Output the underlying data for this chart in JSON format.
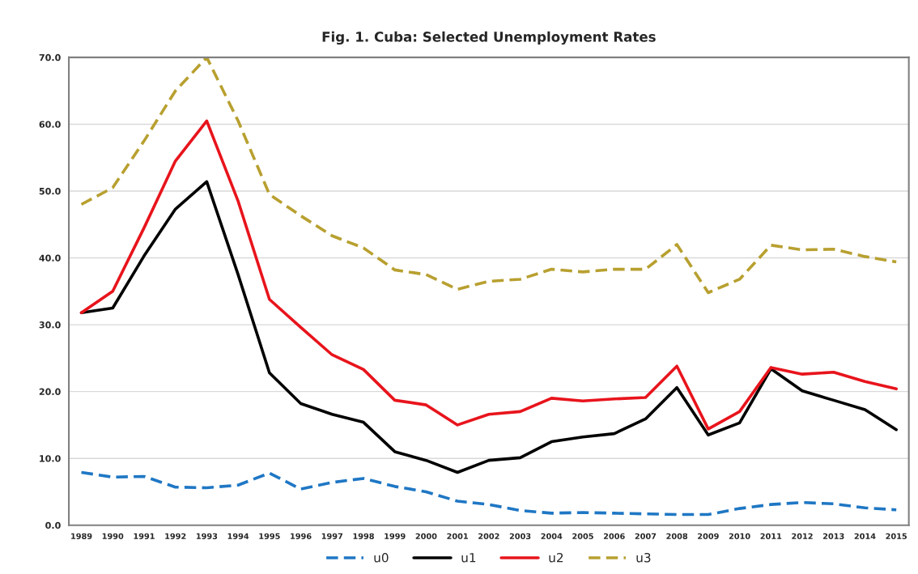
{
  "chart_data": {
    "type": "line",
    "title": "Fig. 1. Cuba: Selected Unemployment Rates",
    "categories": [
      "1989",
      "1990",
      "1991",
      "1992",
      "1993",
      "1994",
      "1995",
      "1996",
      "1997",
      "1998",
      "1999",
      "2000",
      "2001",
      "2002",
      "2003",
      "2004",
      "2005",
      "2006",
      "2007",
      "2008",
      "2009",
      "2010",
      "2011",
      "2012",
      "2013",
      "2014",
      "2015"
    ],
    "series": [
      {
        "name": "u0",
        "color": "#1f77c4",
        "line_style": "dashed",
        "values": [
          7.9,
          7.2,
          7.3,
          5.7,
          5.6,
          6.0,
          7.8,
          5.4,
          6.4,
          7.0,
          5.8,
          5.0,
          3.6,
          3.1,
          2.2,
          1.8,
          1.9,
          1.8,
          1.7,
          1.6,
          1.6,
          2.5,
          3.1,
          3.4,
          3.2,
          2.6,
          2.3
        ]
      },
      {
        "name": "u1",
        "color": "#000000",
        "line_style": "solid",
        "values": [
          31.8,
          32.5,
          40.3,
          47.3,
          51.4,
          37.5,
          22.8,
          18.2,
          16.6,
          15.4,
          11.0,
          9.7,
          7.9,
          9.7,
          10.1,
          12.5,
          13.2,
          13.7,
          15.9,
          20.6,
          13.5,
          15.3,
          23.4,
          20.1,
          18.7,
          17.3,
          14.3
        ]
      },
      {
        "name": "u2",
        "color": "#e8141c",
        "line_style": "solid",
        "values": [
          31.8,
          35.0,
          44.5,
          54.5,
          60.5,
          48.5,
          33.8,
          29.6,
          25.5,
          23.3,
          18.7,
          18.0,
          15.0,
          16.6,
          17.0,
          19.0,
          18.6,
          18.9,
          19.1,
          23.8,
          14.4,
          17.0,
          23.6,
          22.6,
          22.9,
          21.5,
          20.4
        ]
      },
      {
        "name": "u3",
        "color": "#b8a030",
        "line_style": "dashed",
        "values": [
          48.0,
          50.5,
          57.5,
          65.0,
          70.0,
          60.5,
          49.5,
          46.3,
          43.3,
          41.5,
          38.2,
          37.5,
          35.3,
          36.5,
          36.8,
          38.3,
          37.9,
          38.3,
          38.3,
          42.0,
          34.8,
          36.8,
          41.9,
          41.2,
          41.3,
          40.2,
          39.4
        ]
      }
    ],
    "ylim": [
      0,
      70
    ],
    "yticks": [
      {
        "value": 0,
        "label": "0.0"
      },
      {
        "value": 10,
        "label": "10.0"
      },
      {
        "value": 20,
        "label": "20.0"
      },
      {
        "value": 30,
        "label": "30.0"
      },
      {
        "value": 40,
        "label": "40.0"
      },
      {
        "value": 50,
        "label": "50.0"
      },
      {
        "value": 60,
        "label": "60.0"
      },
      {
        "value": 70,
        "label": "70.0"
      }
    ],
    "grid": "y",
    "legend": "bottom"
  }
}
